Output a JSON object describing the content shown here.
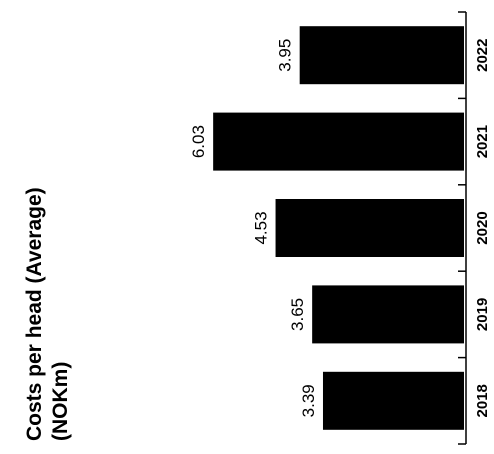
{
  "chart_data": {
    "type": "bar",
    "orientation": "rotated-90-ccw",
    "title": "Costs per head (Average) (NOKm)",
    "title_lines": [
      "Costs per head (Average)",
      "(NOKm)"
    ],
    "categories": [
      "2018",
      "2019",
      "2020",
      "2021",
      "2022"
    ],
    "values": [
      3.39,
      3.65,
      4.53,
      6.03,
      3.95
    ],
    "data_labels": [
      "3.39",
      "3.65",
      "4.53",
      "6.03",
      "3.95"
    ],
    "ylim": [
      0,
      6.5
    ],
    "grid": false,
    "legend": "none",
    "bar_color": "#000000",
    "axis_color": "#000000"
  }
}
